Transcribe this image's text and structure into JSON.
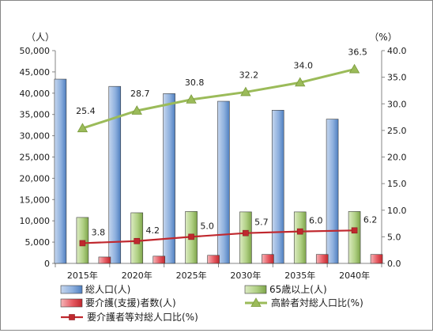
{
  "chart_data": {
    "type": "bar",
    "categories": [
      "2015年",
      "2020年",
      "2025年",
      "2030年",
      "2035年",
      "2040年"
    ],
    "y_left": {
      "unit": "（人）",
      "ylim": [
        0,
        50000
      ],
      "ticks": [
        "0",
        "5,000",
        "10,000",
        "15,000",
        "20,000",
        "25,000",
        "30,000",
        "35,000",
        "40,000",
        "45,000",
        "50,000"
      ]
    },
    "y_right": {
      "unit": "（%）",
      "ylim": [
        0,
        40
      ],
      "ticks": [
        "0.0",
        "5.0",
        "10.0",
        "15.0",
        "20.0",
        "25.0",
        "30.0",
        "35.0",
        "40.0"
      ]
    },
    "series": [
      {
        "name": "総人口(人)",
        "kind": "bar",
        "axis": "left",
        "color": "#4f81bd",
        "values": [
          43300,
          41600,
          39900,
          38100,
          36000,
          33900
        ]
      },
      {
        "name": "65歳以上(人)",
        "kind": "bar",
        "axis": "left",
        "color": "#9bbb59",
        "values": [
          10800,
          11900,
          12200,
          12100,
          12100,
          12200
        ]
      },
      {
        "name": "要介護(支援)者数(人)",
        "kind": "bar",
        "axis": "left",
        "color": "#e0303a",
        "values": [
          1500,
          1700,
          1900,
          2100,
          2100,
          2100
        ]
      },
      {
        "name": "高齢者対総人口比(%)",
        "kind": "line",
        "axis": "right",
        "color": "#9bbb59",
        "marker": "triangle",
        "values": [
          25.4,
          28.7,
          30.8,
          32.2,
          34.0,
          36.5
        ],
        "labels": [
          "25.4",
          "28.7",
          "30.8",
          "32.2",
          "34.0",
          "36.5"
        ]
      },
      {
        "name": "要介護者等対総人口比(%)",
        "kind": "line",
        "axis": "right",
        "color": "#c0282e",
        "marker": "square",
        "values": [
          3.8,
          4.2,
          5.0,
          5.7,
          6.0,
          6.2
        ],
        "labels": [
          "3.8",
          "4.2",
          "5.0",
          "5.7",
          "6.0",
          "6.2"
        ]
      }
    ],
    "grid": false,
    "legend_position": "bottom"
  }
}
